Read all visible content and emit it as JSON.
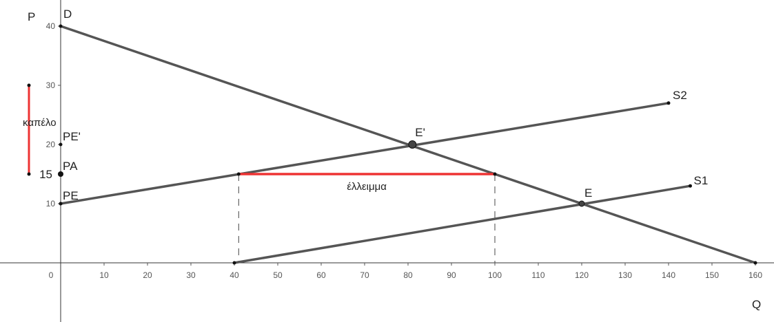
{
  "chart_data": {
    "type": "line",
    "xlabel": "Q",
    "ylabel": "P",
    "xlim": [
      0,
      160
    ],
    "ylim": [
      0,
      40
    ],
    "x_ticks": [
      "0",
      "10",
      "20",
      "30",
      "40",
      "50",
      "60",
      "70",
      "80",
      "90",
      "100",
      "110",
      "120",
      "130",
      "140",
      "150",
      "160"
    ],
    "y_ticks": [
      "10",
      "20",
      "30",
      "40"
    ],
    "series": [
      {
        "name": "D",
        "color": "#555555",
        "points": [
          [
            0,
            40
          ],
          [
            160,
            0
          ]
        ]
      },
      {
        "name": "S1",
        "color": "#555555",
        "points": [
          [
            40,
            0
          ],
          [
            145,
            13
          ]
        ]
      },
      {
        "name": "S2",
        "color": "#555555",
        "name_color": "#5a5ae6",
        "points": [
          [
            0,
            10
          ],
          [
            140,
            27
          ]
        ]
      }
    ],
    "points": [
      {
        "name": "E'",
        "x": 81,
        "y": 20
      },
      {
        "name": "E",
        "x": 120,
        "y": 10
      }
    ],
    "price_labels": [
      {
        "name": "PE'",
        "y": 20
      },
      {
        "name": "PA",
        "y": 15
      },
      {
        "name": "PE",
        "y": 10
      }
    ],
    "extra_tick": {
      "label": "15",
      "y": 15
    },
    "shortage": {
      "label": "έλλειμμα",
      "x1": 41,
      "x2": 100,
      "y": 15,
      "color": "#ee3333"
    },
    "ceiling_bracket": {
      "label": "καπέλο",
      "y1": 15,
      "y2": 30,
      "color": "#ee3333"
    },
    "dashed_guides": [
      41,
      100
    ]
  }
}
